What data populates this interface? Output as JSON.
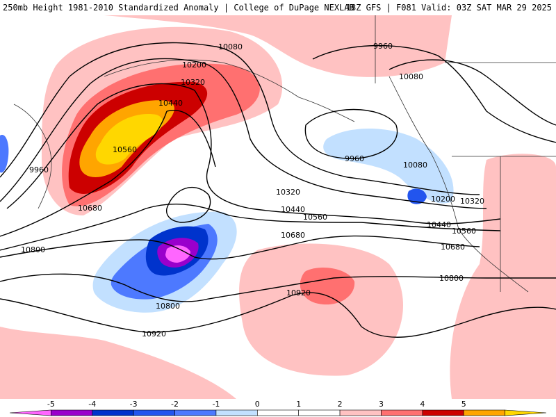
{
  "header": {
    "title": "250mb Height 1981-2010 Standardized Anomaly | College of DuPage NEXLAB",
    "run_info": "18Z GFS | F081 Valid: 03Z SAT MAR 29 2025"
  },
  "contour_labels": [
    "10080",
    "10200",
    "10320",
    "10440",
    "10560",
    "9960",
    "10680",
    "10800",
    "10920",
    "9960",
    "10080",
    "9960",
    "10080",
    "10200",
    "10320",
    "10320",
    "10440",
    "10560",
    "10680",
    "10800",
    "10440",
    "10560",
    "10680",
    "10800",
    "10920"
  ],
  "colorbar": {
    "ticks": [
      "-5",
      "-4",
      "-3",
      "-2",
      "-1",
      "0",
      "1",
      "2",
      "3",
      "4",
      "5"
    ],
    "colors": [
      "#ff66ff",
      "#9900cc",
      "#0033cc",
      "#2255ee",
      "#4d79ff",
      "#c2e0ff",
      "#ffffff",
      "#ffffff",
      "#ffc2c2",
      "#ff7070",
      "#cc0000",
      "#ffa500",
      "#ffd700"
    ]
  }
}
